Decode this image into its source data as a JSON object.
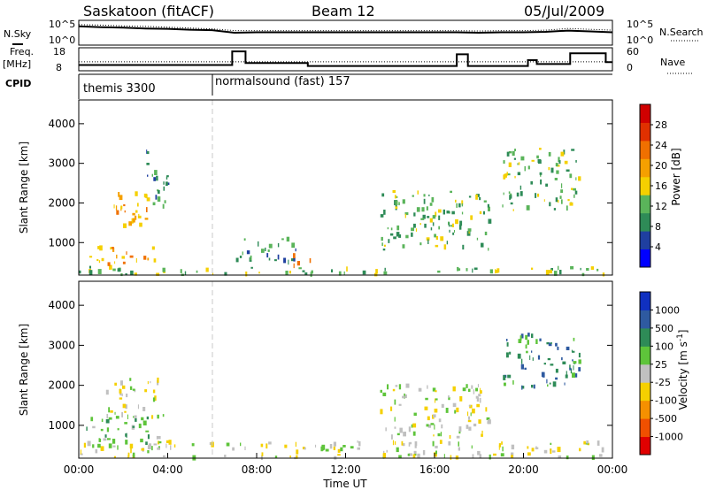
{
  "header": {
    "station": "Saskatoon (fitACF)",
    "beam": "Beam 12",
    "date": "05/Jul/2009"
  },
  "side_labels": {
    "nsky": "N.Sky",
    "nsearch": "N.Search",
    "freq": "Freq.",
    "freq_unit": "[MHz]",
    "nave": "Nave",
    "cpid": "CPID"
  },
  "colors": {
    "power_scale": [
      "#0000ff",
      "#1f3fa0",
      "#2e8b57",
      "#5ab45a",
      "#f5d000",
      "#f5a000",
      "#f07000",
      "#e03000",
      "#d00000"
    ],
    "velocity_scale": [
      "#1030c0",
      "#2e5aa0",
      "#2e8b57",
      "#5ec43a",
      "#c0c0c0",
      "#f5d000",
      "#f59000",
      "#f05000",
      "#e00000"
    ],
    "text": "#000000"
  },
  "chart_data": [
    {
      "type": "line",
      "panel": "noise",
      "series": [
        {
          "name": "N.Sky"
        },
        {
          "name": "N.Search"
        }
      ],
      "yticks_left": [
        "10^5",
        "10^0"
      ],
      "yticks_right": [
        "10^5",
        "10^0"
      ],
      "x": [
        "00:00",
        "01:00",
        "02:00",
        "03:00",
        "04:00",
        "05:00",
        "06:00",
        "07:00",
        "08:00",
        "09:00",
        "10:00",
        "11:00",
        "12:00",
        "13:00",
        "14:00",
        "15:00",
        "16:00",
        "17:00",
        "18:00",
        "19:00",
        "20:00",
        "21:00",
        "22:00",
        "23:00",
        "24:00"
      ],
      "nsky": [
        4.0,
        3.8,
        3.7,
        3.5,
        3.4,
        3.2,
        3.1,
        2.5,
        2.6,
        2.6,
        2.6,
        2.6,
        2.6,
        2.6,
        2.6,
        2.6,
        2.6,
        2.6,
        2.5,
        2.6,
        2.6,
        2.7,
        3.0,
        2.8,
        2.6
      ],
      "nsearch": [
        4.4,
        4.3,
        4.1,
        4.0,
        3.8,
        3.6,
        3.4,
        3.0,
        3.0,
        3.0,
        3.0,
        3.0,
        3.0,
        3.0,
        3.0,
        3.0,
        3.0,
        3.0,
        2.9,
        3.0,
        3.0,
        3.1,
        3.5,
        3.3,
        3.1
      ]
    },
    {
      "type": "line",
      "panel": "frequency-nave",
      "yticks_left": [
        "18",
        "8"
      ],
      "yticks_right": [
        "60",
        "0"
      ],
      "segments": [
        {
          "t0": 0.0,
          "t1": 6.9,
          "freq": 10.5
        },
        {
          "t0": 6.9,
          "t1": 7.5,
          "freq": 17.5
        },
        {
          "t0": 7.5,
          "t1": 10.3,
          "freq": 11.5
        },
        {
          "t0": 10.3,
          "t1": 17.0,
          "freq": 10.0
        },
        {
          "t0": 17.0,
          "t1": 17.5,
          "freq": 16.0
        },
        {
          "t0": 17.5,
          "t1": 20.2,
          "freq": 10.0
        },
        {
          "t0": 20.2,
          "t1": 20.6,
          "freq": 13.0
        },
        {
          "t0": 20.6,
          "t1": 22.1,
          "freq": 11.0
        },
        {
          "t0": 22.1,
          "t1": 23.7,
          "freq": 16.5
        },
        {
          "t0": 23.7,
          "t1": 24.0,
          "freq": 12.0
        }
      ],
      "nave_level": 25
    },
    {
      "type": "table",
      "panel": "cpid",
      "entries": [
        {
          "t0": 0.0,
          "t1": 6.0,
          "label": "themis 3300"
        },
        {
          "t0": 6.0,
          "t1": 24.0,
          "label": "normalsound (fast) 157"
        }
      ]
    },
    {
      "type": "heatmap",
      "panel": "power",
      "xlabel": "",
      "ylabel": "Slant Range [km]",
      "yticks": [
        "1000",
        "2000",
        "3000",
        "4000"
      ],
      "ylim": [
        180,
        4600
      ],
      "xlim": [
        0,
        24
      ],
      "colorbar_label": "Power [dB]",
      "colorbar_ticks": [
        "4",
        "8",
        "12",
        "16",
        "20",
        "24",
        "28"
      ],
      "regions": [
        {
          "t0": 0.0,
          "t1": 24.0,
          "r0": 180,
          "r1": 380,
          "v": 3
        },
        {
          "t0": 0.3,
          "t1": 3.8,
          "r0": 450,
          "r1": 900,
          "v": 5
        },
        {
          "t0": 1.5,
          "t1": 3.6,
          "r0": 1400,
          "r1": 2300,
          "v": 5
        },
        {
          "t0": 3.0,
          "t1": 4.0,
          "r0": 1900,
          "r1": 3400,
          "v": 2
        },
        {
          "t0": 6.8,
          "t1": 9.8,
          "r0": 500,
          "r1": 1100,
          "v": 2
        },
        {
          "t0": 9.5,
          "t1": 10.5,
          "r0": 400,
          "r1": 700,
          "v": 6
        },
        {
          "t0": 13.5,
          "t1": 18.5,
          "r0": 800,
          "r1": 2300,
          "v": 3
        },
        {
          "t0": 19.0,
          "t1": 22.5,
          "r0": 1800,
          "r1": 3400,
          "v": 3
        }
      ]
    },
    {
      "type": "heatmap",
      "panel": "velocity",
      "xlabel": "Time UT",
      "ylabel": "Slant Range [km]",
      "yticks": [
        "1000",
        "2000",
        "3000",
        "4000"
      ],
      "ylim": [
        180,
        4600
      ],
      "xlim": [
        0,
        24
      ],
      "xticks": [
        "00:00",
        "04:00",
        "08:00",
        "12:00",
        "16:00",
        "20:00",
        "00:00"
      ],
      "colorbar_label": "Velocity [m s^-1]",
      "colorbar_ticks": [
        "1000",
        "500",
        "100",
        "25",
        "-25",
        "-100",
        "-500",
        "-1000"
      ],
      "regions": [
        {
          "t0": 0.0,
          "t1": 24.0,
          "r0": 180,
          "r1": 600,
          "v": 4
        },
        {
          "t0": 0.3,
          "t1": 3.8,
          "r0": 450,
          "r1": 1300,
          "v": 3
        },
        {
          "t0": 1.2,
          "t1": 3.6,
          "r0": 1200,
          "r1": 2200,
          "v": 4
        },
        {
          "t0": 13.5,
          "t1": 18.5,
          "r0": 700,
          "r1": 2000,
          "v": 4
        },
        {
          "t0": 19.0,
          "t1": 22.5,
          "r0": 1900,
          "r1": 3300,
          "v": 2
        }
      ]
    }
  ]
}
